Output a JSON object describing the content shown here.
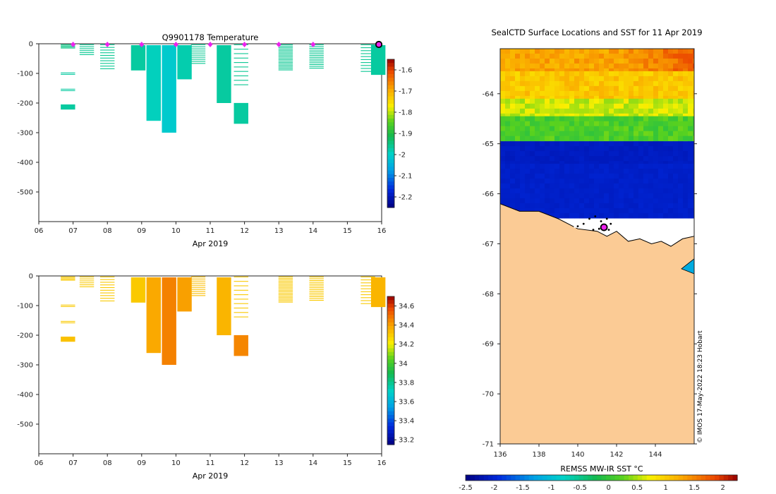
{
  "chart_data": [
    {
      "id": "temperature_section",
      "type": "heatmap",
      "title": "Q9901178  Temperature",
      "xlabel": "Apr 2019",
      "x_tick_labels": [
        "06",
        "07",
        "08",
        "09",
        "10",
        "11",
        "12",
        "13",
        "14",
        "15",
        "16"
      ],
      "xlim": [
        6,
        16
      ],
      "ylim": [
        -600,
        0
      ],
      "y_ticks": [
        0,
        -100,
        -200,
        -300,
        -400,
        -500
      ],
      "colorbar": {
        "min": -2.25,
        "max": -1.55,
        "ticks": [
          -1.6,
          -1.7,
          -1.8,
          -1.9,
          -2,
          -2.1,
          -2.2
        ],
        "tick_labels": [
          "-1.6",
          "-1.7",
          "-1.8",
          "-1.9",
          "-2",
          "-2.1",
          "-2.2"
        ]
      },
      "surface_markers_day": [
        7,
        8,
        9,
        10,
        11,
        12,
        13,
        14
      ],
      "current_profile_day": 16,
      "profiles": [
        {
          "day": 6.85,
          "depth": 15,
          "value": -1.95,
          "lines": 4
        },
        {
          "day": 6.85,
          "depth": 105,
          "value": -1.97,
          "lines": 2,
          "from": 95
        },
        {
          "day": 6.85,
          "depth": 160,
          "value": -1.97,
          "lines": 2,
          "from": 150
        },
        {
          "day": 6.85,
          "depth": 222,
          "value": -1.97,
          "from": 200
        },
        {
          "day": 7.4,
          "depth": 40,
          "value": -1.96,
          "lines": 6
        },
        {
          "day": 8.0,
          "depth": 90,
          "value": -1.96,
          "lines": 10
        },
        {
          "day": 8.9,
          "depth": 90,
          "value": -1.97
        },
        {
          "day": 9.35,
          "depth": 260,
          "value": -1.99
        },
        {
          "day": 9.8,
          "depth": 300,
          "value": -2.01
        },
        {
          "day": 10.25,
          "depth": 120,
          "value": -1.98
        },
        {
          "day": 10.65,
          "depth": 70,
          "value": -1.96,
          "lines": 10
        },
        {
          "day": 11.4,
          "depth": 200,
          "value": -1.97
        },
        {
          "day": 11.9,
          "depth": 150,
          "value": -1.96,
          "lines": 10
        },
        {
          "day": 11.9,
          "depth": 270,
          "value": -1.97,
          "from": 195
        },
        {
          "day": 13.2,
          "depth": 90,
          "value": -1.96,
          "lines": 18
        },
        {
          "day": 14.1,
          "depth": 85,
          "value": -1.96,
          "lines": 14
        },
        {
          "day": 15.6,
          "depth": 100,
          "value": -1.96,
          "lines": 10
        },
        {
          "day": 15.9,
          "depth": 105,
          "value": -1.97
        }
      ]
    },
    {
      "id": "salinity_section",
      "type": "heatmap",
      "title": "",
      "xlabel": "Apr 2019",
      "x_tick_labels": [
        "06",
        "07",
        "08",
        "09",
        "10",
        "11",
        "12",
        "13",
        "14",
        "15",
        "16"
      ],
      "xlim": [
        6,
        16
      ],
      "ylim": [
        -600,
        0
      ],
      "y_ticks": [
        0,
        -100,
        -200,
        -300,
        -400,
        -500
      ],
      "colorbar": {
        "min": 33.15,
        "max": 34.7,
        "ticks": [
          34.6,
          34.4,
          34.2,
          34,
          33.8,
          33.6,
          33.4,
          33.2
        ],
        "tick_labels": [
          "34.6",
          "34.4",
          "34.2",
          "34",
          "33.8",
          "33.6",
          "33.4",
          "33.2"
        ]
      },
      "profiles": [
        {
          "day": 6.85,
          "depth": 15,
          "value": 34.3,
          "lines": 4
        },
        {
          "day": 6.85,
          "depth": 105,
          "value": 34.3,
          "lines": 2,
          "from": 95
        },
        {
          "day": 6.85,
          "depth": 160,
          "value": 34.3,
          "lines": 2,
          "from": 150
        },
        {
          "day": 6.85,
          "depth": 222,
          "value": 34.32,
          "from": 200
        },
        {
          "day": 7.4,
          "depth": 40,
          "value": 34.3,
          "lines": 6
        },
        {
          "day": 8.0,
          "depth": 90,
          "value": 34.3,
          "lines": 10
        },
        {
          "day": 8.9,
          "depth": 90,
          "value": 34.3
        },
        {
          "day": 9.35,
          "depth": 260,
          "value": 34.38
        },
        {
          "day": 9.8,
          "depth": 300,
          "value": 34.46
        },
        {
          "day": 10.25,
          "depth": 120,
          "value": 34.4
        },
        {
          "day": 10.65,
          "depth": 70,
          "value": 34.33,
          "lines": 10
        },
        {
          "day": 11.4,
          "depth": 200,
          "value": 34.35
        },
        {
          "day": 11.9,
          "depth": 150,
          "value": 34.3,
          "lines": 10
        },
        {
          "day": 11.9,
          "depth": 270,
          "value": 34.45,
          "from": 195
        },
        {
          "day": 13.2,
          "depth": 90,
          "value": 34.3,
          "lines": 18
        },
        {
          "day": 14.1,
          "depth": 85,
          "value": 34.3,
          "lines": 14
        },
        {
          "day": 15.6,
          "depth": 100,
          "value": 34.3,
          "lines": 10
        },
        {
          "day": 15.9,
          "depth": 105,
          "value": 34.35
        }
      ]
    },
    {
      "id": "sst_map",
      "type": "heatmap",
      "title": "SealCTD Surface Locations and SST for 11 Apr 2019",
      "xlabel": "",
      "x_ticks": [
        136,
        138,
        140,
        142,
        144
      ],
      "x_tick_labels": [
        "136",
        "138",
        "140",
        "142",
        "144"
      ],
      "y_ticks": [
        -64,
        -65,
        -66,
        -67,
        -68,
        -69,
        -70,
        -71
      ],
      "y_tick_labels": [
        "-64",
        "-65",
        "-66",
        "-67",
        "-68",
        "-69",
        "-70",
        "-71"
      ],
      "xlim": [
        136,
        146
      ],
      "ylim": [
        -71,
        -63.1
      ],
      "colorbar": {
        "label": "REMSS MW-IR SST °C",
        "min": -2.5,
        "max": 2.25,
        "ticks": [
          -2.5,
          -2,
          -1.5,
          -1,
          -0.5,
          0,
          0.5,
          1,
          1.5,
          2
        ],
        "tick_labels": [
          "-2.5",
          "-2",
          "-1.5",
          "-1",
          "-0.5",
          "0",
          "0.5",
          "1",
          "1.5",
          "2"
        ]
      },
      "sst_bands": [
        {
          "lat_top": -63.1,
          "lat_bottom": -63.55,
          "value": 1.3
        },
        {
          "lat_top": -63.55,
          "lat_bottom": -64.1,
          "value": 1.05
        },
        {
          "lat_top": -64.1,
          "lat_bottom": -64.45,
          "value": 0.6
        },
        {
          "lat_top": -64.45,
          "lat_bottom": -64.95,
          "value": 0.15
        },
        {
          "lat_top": -64.95,
          "lat_bottom": -65.4,
          "value": -2.1
        },
        {
          "lat_top": -65.4,
          "lat_bottom": -66.4,
          "value": -2.05
        }
      ],
      "coast": [
        [
          136,
          -66.2
        ],
        [
          137,
          -66.35
        ],
        [
          138,
          -66.35
        ],
        [
          139,
          -66.5
        ],
        [
          140,
          -66.7
        ],
        [
          141,
          -66.75
        ],
        [
          141.5,
          -66.85
        ],
        [
          142,
          -66.75
        ],
        [
          142.6,
          -66.95
        ],
        [
          143.2,
          -66.9
        ],
        [
          143.8,
          -67.0
        ],
        [
          144.3,
          -66.95
        ],
        [
          144.8,
          -67.05
        ],
        [
          145.4,
          -66.9
        ],
        [
          146,
          -66.85
        ]
      ],
      "track_points": [
        [
          140.0,
          -66.65
        ],
        [
          140.3,
          -66.6
        ],
        [
          140.6,
          -66.5
        ],
        [
          140.9,
          -66.45
        ],
        [
          141.2,
          -66.55
        ],
        [
          141.5,
          -66.5
        ],
        [
          141.7,
          -66.6
        ],
        [
          141.1,
          -66.7
        ],
        [
          140.8,
          -66.72
        ],
        [
          141.6,
          -66.72
        ]
      ],
      "current_location": [
        141.35,
        -66.67
      ],
      "credit": "© IMOS 17-May-2022 18:23 Hobart"
    }
  ]
}
